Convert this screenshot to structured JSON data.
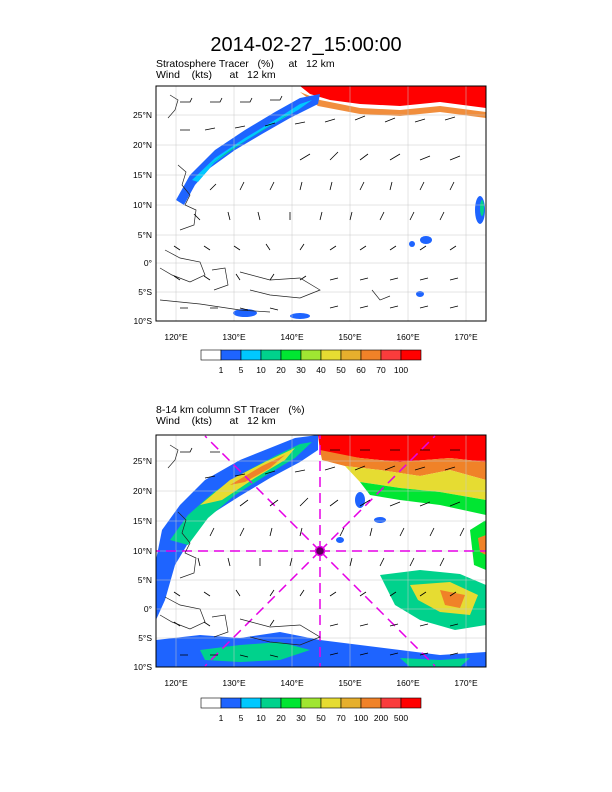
{
  "title": "2014-02-27_15:00:00",
  "panels": [
    {
      "subtitle1": "Stratosphere Tracer   (%)     at   12 km",
      "subtitle2": "Wind    (kts)      at   12 km",
      "lat_labels": [
        "25°N",
        "20°N",
        "15°N",
        "10°N",
        "5°N",
        "0°",
        "5°S",
        "10°S"
      ],
      "lon_labels": [
        "120°E",
        "130°E",
        "140°E",
        "150°E",
        "160°E",
        "170°E"
      ],
      "colorbar_labels": [
        "1",
        "5",
        "10",
        "20",
        "30",
        "40",
        "50",
        "60",
        "70",
        "100"
      ],
      "colors": [
        "#ffffff",
        "#1e64ff",
        "#00c8ff",
        "#00d28c",
        "#00e632",
        "#a0e632",
        "#e6dc32",
        "#e6af2d",
        "#f08228",
        "#fa3c3c",
        "#ff0000"
      ]
    },
    {
      "subtitle1": "8-14 km column ST Tracer   (%)",
      "subtitle2": "Wind    (kts)      at   12 km",
      "lat_labels": [
        "25°N",
        "20°N",
        "15°N",
        "10°N",
        "5°N",
        "0°",
        "5°S",
        "10°S"
      ],
      "lon_labels": [
        "120°E",
        "130°E",
        "140°E",
        "150°E",
        "160°E",
        "170°E"
      ],
      "colorbar_labels": [
        "1",
        "5",
        "10",
        "20",
        "30",
        "50",
        "70",
        "100",
        "200",
        "500"
      ],
      "colors": [
        "#ffffff",
        "#1e64ff",
        "#00c8ff",
        "#00d28c",
        "#00e632",
        "#a0e632",
        "#e6dc32",
        "#e6af2d",
        "#f08228",
        "#fa3c3c",
        "#ff0000"
      ]
    }
  ]
}
